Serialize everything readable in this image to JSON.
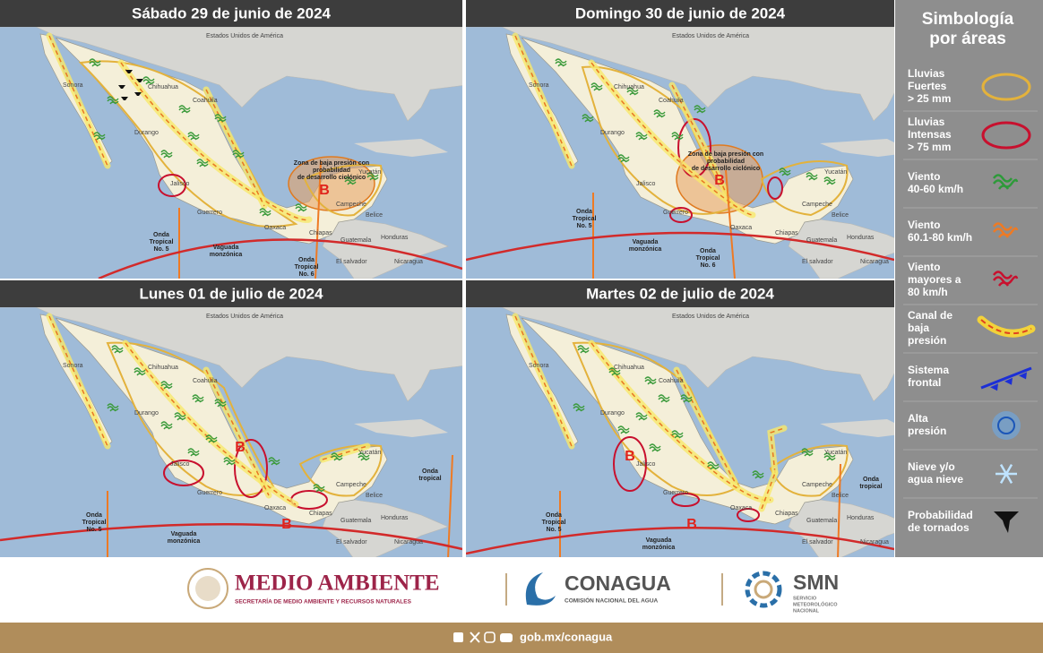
{
  "places": [
    "Estados Unidos de América",
    "Sonora",
    "Chihuahua",
    "Coahuila",
    "Durango",
    "Jalisco",
    "Guerrero",
    "Oaxaca",
    "Chiapas",
    "Campeche",
    "Yucatán",
    "Belice",
    "Guatemala",
    "Honduras",
    "Nicaragua",
    "El salvador"
  ],
  "panels": [
    {
      "title": "Sábado 29 de junio de 2024",
      "systems": [
        [
          "B"
        ],
        [
          "Zona de baja presión con",
          "probabilidad",
          "de desarrollo ciclónico"
        ],
        [
          "Onda",
          "Tropical",
          "No. 5"
        ],
        [
          "Vaguada",
          "monzónica"
        ],
        [
          "Onda",
          "Tropical",
          "No. 6"
        ]
      ]
    },
    {
      "title": "Domingo 30 de junio de 2024",
      "systems": [
        [
          "B"
        ],
        [
          "Zona de baja presión con",
          "probabilidad",
          "de desarrollo ciclónico"
        ],
        [
          "Onda",
          "Tropical",
          "No. 5"
        ],
        [
          "Vaguada",
          "monzónica"
        ],
        [
          "Onda",
          "Tropical",
          "No. 6"
        ]
      ]
    },
    {
      "title": "Lunes 01 de julio de 2024",
      "systems": [
        [
          "B"
        ],
        [
          "B"
        ],
        [
          "Onda",
          "tropical"
        ],
        [
          "Onda",
          "Tropical",
          "No. 5"
        ],
        [
          "Vaguada",
          "monzónica"
        ]
      ]
    },
    {
      "title": "Martes 02 de julio de 2024",
      "systems": [
        [
          "B"
        ],
        [
          "B"
        ],
        [
          "Onda",
          "tropical"
        ],
        [
          "Onda",
          "Tropical",
          "No. 5"
        ],
        [
          "Vaguada",
          "monzónica"
        ]
      ]
    }
  ],
  "legend": {
    "title": [
      "Simbología",
      "por áreas"
    ],
    "items": [
      [
        "Lluvias",
        "Fuertes",
        "> 25 mm"
      ],
      [
        "Lluvias",
        "Intensas",
        "> 75 mm"
      ],
      [
        "Viento",
        "40-60 km/h"
      ],
      [
        "Viento",
        "60.1-80 km/h"
      ],
      [
        "Viento",
        "mayores a",
        "80 km/h"
      ],
      [
        "Canal de",
        "baja",
        "presión"
      ],
      [
        "Sistema",
        "frontal"
      ],
      [
        "Alta",
        "presión"
      ],
      [
        "Nieve y/o",
        "agua nieve"
      ],
      [
        "Probabilidad",
        "de tornados"
      ]
    ]
  },
  "footer": {
    "semarnat": "MEDIO AMBIENTE",
    "semarnat_sub": "SECRETARÍA DE MEDIO AMBIENTE Y RECURSOS NATURALES",
    "conagua": "CONAGUA",
    "conagua_sub": "COMISIÓN NACIONAL DEL AGUA",
    "smn": "SMN",
    "smn_sub": [
      "SERVICIO",
      "METEOROLÓGICO",
      "NACIONAL"
    ],
    "url": "gob.mx/conagua"
  }
}
